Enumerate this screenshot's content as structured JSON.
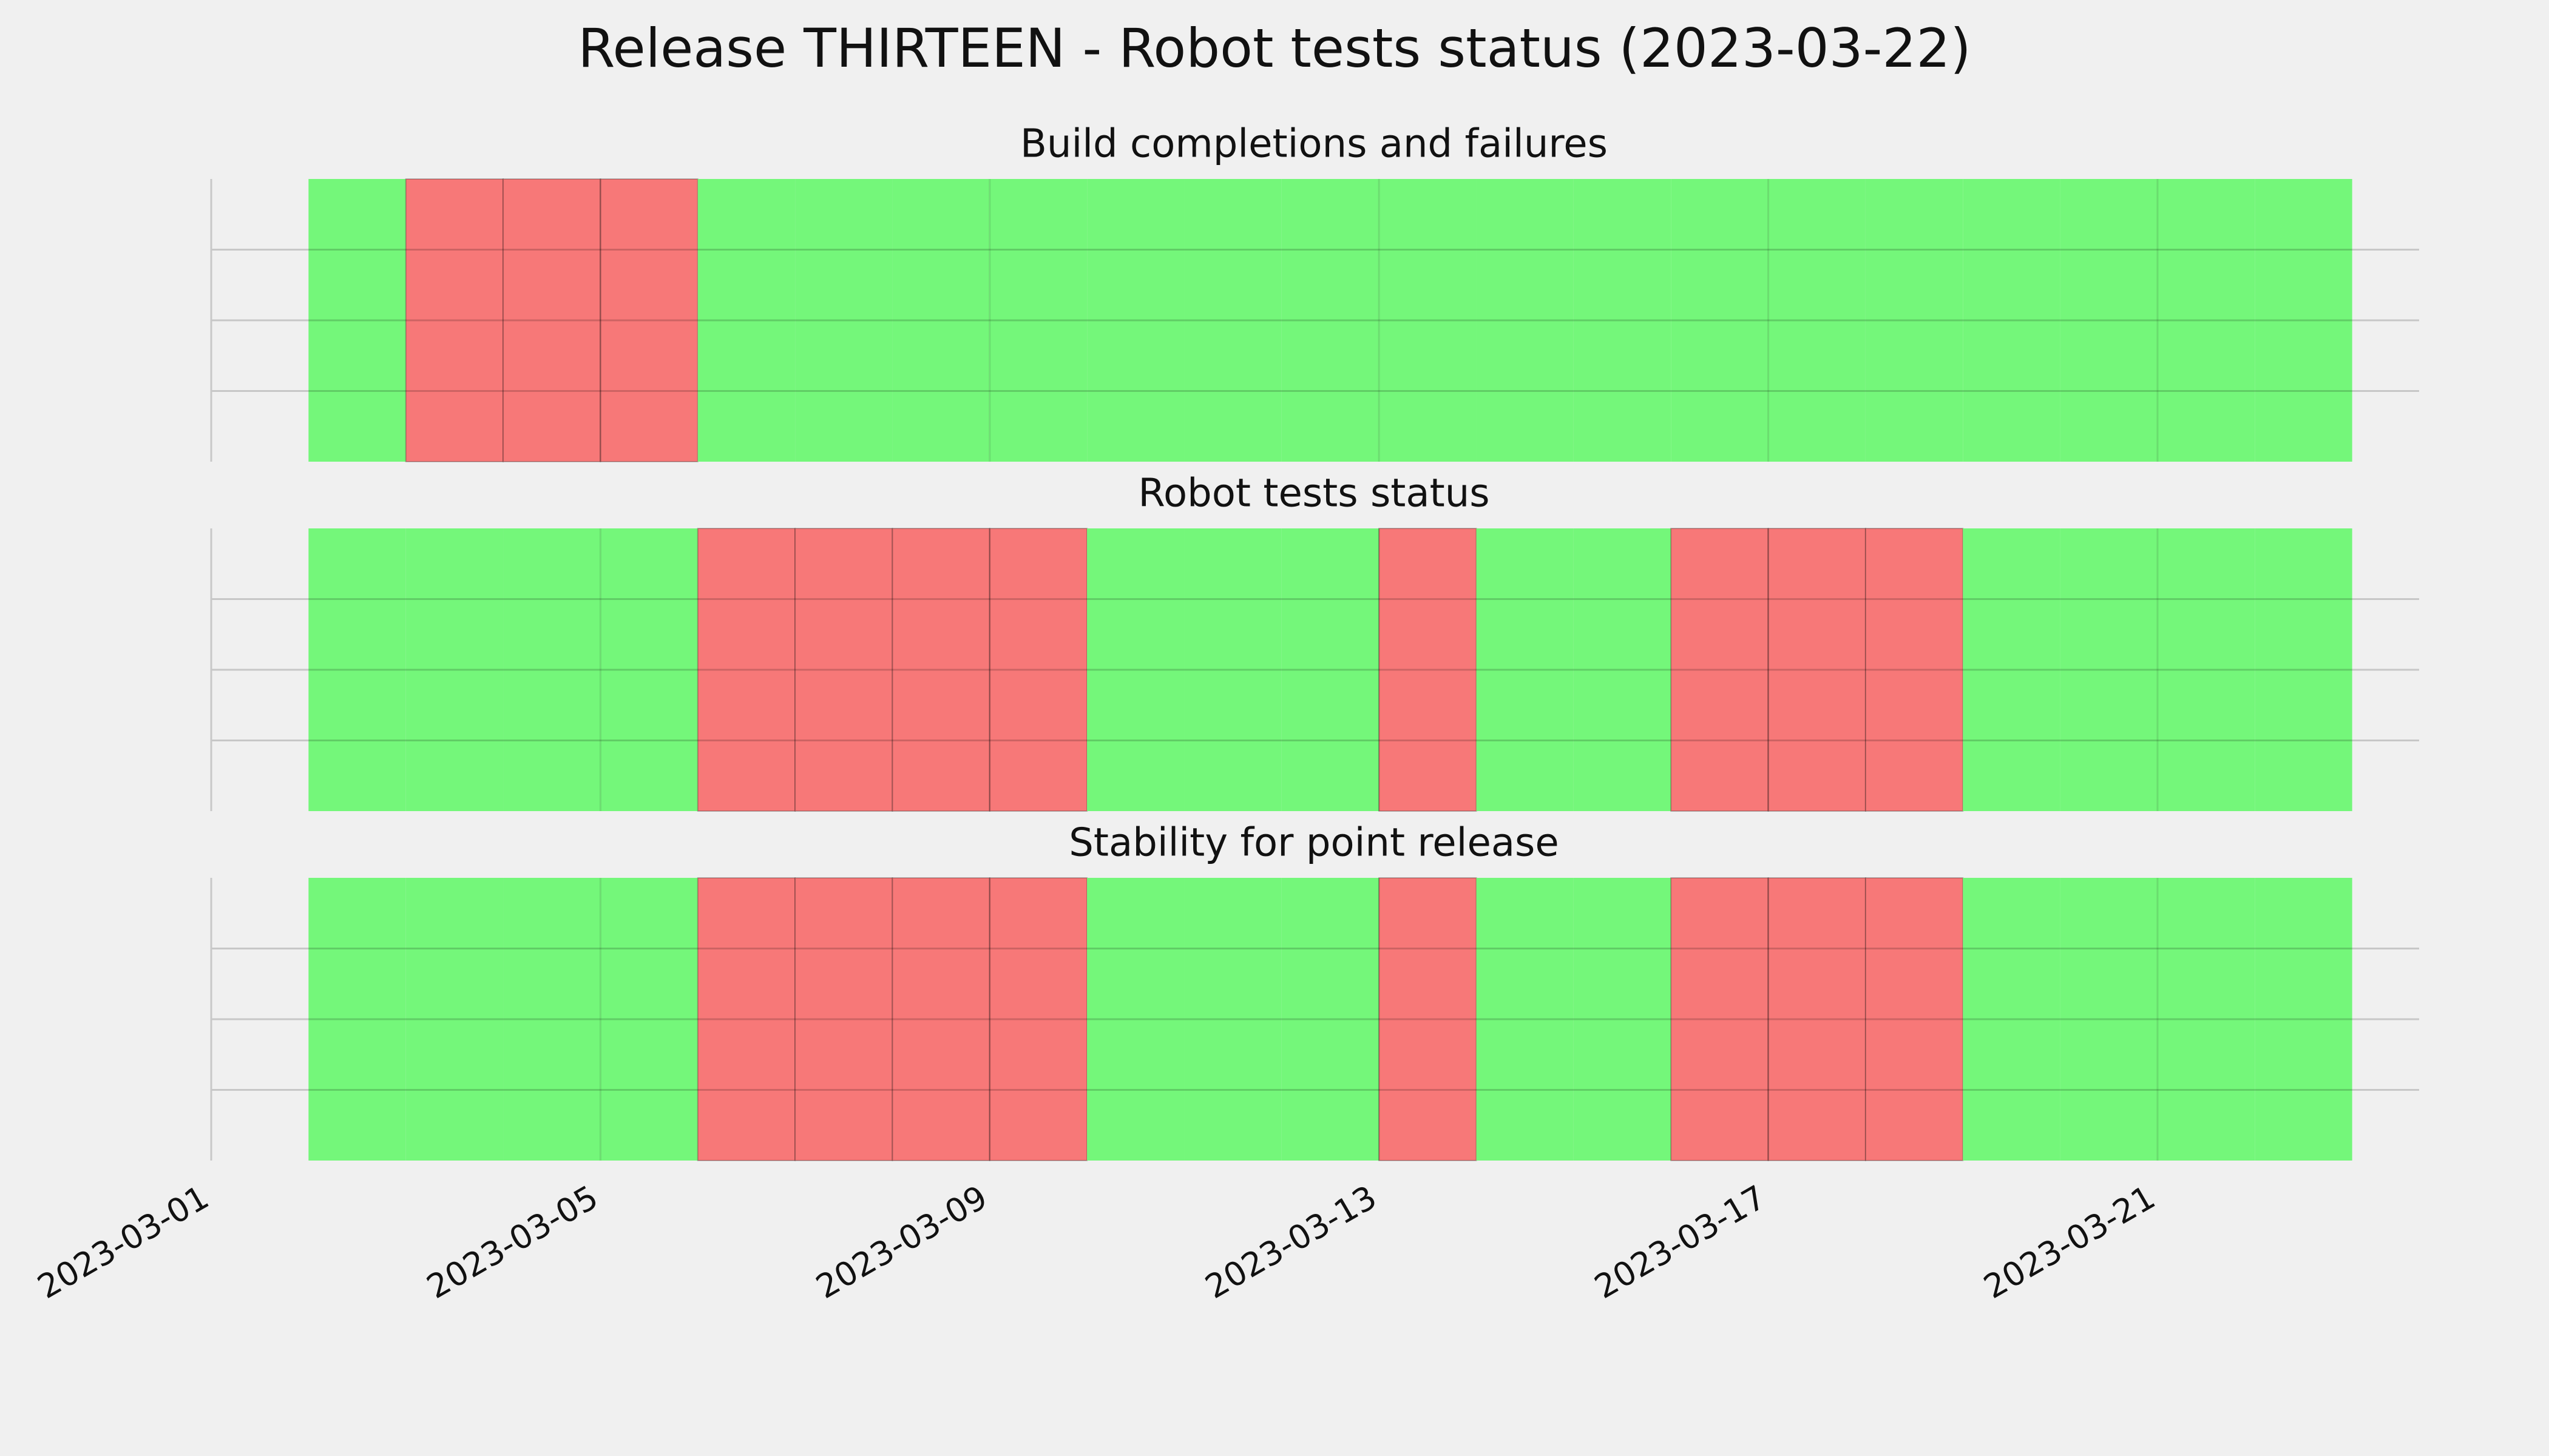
{
  "title": "Release THIRTEEN - Robot tests status (2023-03-22)",
  "chart_data": [
    {
      "type": "status",
      "title": "Build completions and failures",
      "x": [
        "2023-03-02",
        "2023-03-03",
        "2023-03-04",
        "2023-03-05",
        "2023-03-06",
        "2023-03-07",
        "2023-03-08",
        "2023-03-09",
        "2023-03-10",
        "2023-03-11",
        "2023-03-12",
        "2023-03-13",
        "2023-03-14",
        "2023-03-15",
        "2023-03-16",
        "2023-03-17",
        "2023-03-18",
        "2023-03-19",
        "2023-03-20",
        "2023-03-21",
        "2023-03-22"
      ],
      "values": [
        1,
        0,
        0,
        0,
        1,
        1,
        1,
        1,
        1,
        1,
        1,
        1,
        1,
        1,
        1,
        1,
        1,
        1,
        1,
        1,
        1
      ],
      "colors": [
        "#f77878",
        "#74f77a"
      ],
      "xlim": [
        "2023-03-01",
        "2023-03-24"
      ],
      "xticks": [
        "2023-03-01",
        "2023-03-05",
        "2023-03-09",
        "2023-03-13",
        "2023-03-17",
        "2023-03-21"
      ],
      "ylim": [
        0,
        1
      ],
      "yticks": [
        0.25,
        0.5,
        0.75
      ],
      "grid": true
    },
    {
      "type": "status",
      "title": "Robot tests status",
      "x": [
        "2023-03-02",
        "2023-03-03",
        "2023-03-04",
        "2023-03-05",
        "2023-03-06",
        "2023-03-07",
        "2023-03-08",
        "2023-03-09",
        "2023-03-10",
        "2023-03-11",
        "2023-03-12",
        "2023-03-13",
        "2023-03-14",
        "2023-03-15",
        "2023-03-16",
        "2023-03-17",
        "2023-03-18",
        "2023-03-19",
        "2023-03-20",
        "2023-03-21",
        "2023-03-22"
      ],
      "values": [
        1,
        1,
        1,
        1,
        0,
        0,
        0,
        0,
        1,
        1,
        1,
        0,
        1,
        1,
        0,
        0,
        0,
        1,
        1,
        1,
        1
      ],
      "colors": [
        "#f77878",
        "#74f77a"
      ],
      "xlim": [
        "2023-03-01",
        "2023-03-24"
      ],
      "xticks": [
        "2023-03-01",
        "2023-03-05",
        "2023-03-09",
        "2023-03-13",
        "2023-03-17",
        "2023-03-21"
      ],
      "ylim": [
        0,
        1
      ],
      "yticks": [
        0.25,
        0.5,
        0.75
      ],
      "grid": true
    },
    {
      "type": "status",
      "title": "Stability for point release",
      "x": [
        "2023-03-02",
        "2023-03-03",
        "2023-03-04",
        "2023-03-05",
        "2023-03-06",
        "2023-03-07",
        "2023-03-08",
        "2023-03-09",
        "2023-03-10",
        "2023-03-11",
        "2023-03-12",
        "2023-03-13",
        "2023-03-14",
        "2023-03-15",
        "2023-03-16",
        "2023-03-17",
        "2023-03-18",
        "2023-03-19",
        "2023-03-20",
        "2023-03-21",
        "2023-03-22"
      ],
      "values": [
        1,
        1,
        1,
        1,
        0,
        0,
        0,
        0,
        1,
        1,
        1,
        0,
        1,
        1,
        0,
        0,
        0,
        1,
        1,
        1,
        1
      ],
      "colors": [
        "#f77878",
        "#74f77a"
      ],
      "xlim": [
        "2023-03-01",
        "2023-03-24"
      ],
      "xticks": [
        "2023-03-01",
        "2023-03-05",
        "2023-03-09",
        "2023-03-13",
        "2023-03-17",
        "2023-03-21"
      ],
      "ylim": [
        0,
        1
      ],
      "yticks": [
        0.25,
        0.5,
        0.75
      ],
      "grid": true,
      "show_xtick_labels": true
    }
  ]
}
